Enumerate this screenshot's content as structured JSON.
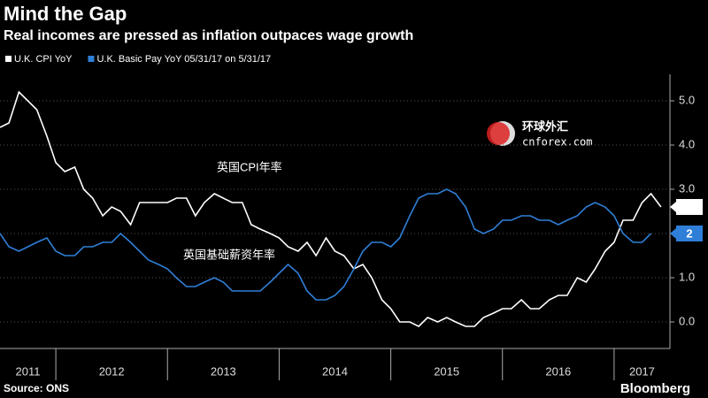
{
  "chart_data": {
    "type": "line",
    "title": "Mind the Gap",
    "subtitle": "Real incomes are pressed as inflation outpaces wage growth",
    "source": "Source: ONS",
    "brand": "Bloomberg",
    "annotations": [
      "英国CPI年率",
      "英国基础薪资年率"
    ],
    "watermark": [
      "环球外汇",
      "cnforex.com"
    ],
    "x": [
      2011.5,
      2011.58,
      2011.67,
      2011.75,
      2011.83,
      2011.92,
      2012.0,
      2012.08,
      2012.17,
      2012.25,
      2012.33,
      2012.42,
      2012.5,
      2012.58,
      2012.67,
      2012.75,
      2012.83,
      2012.92,
      2013.0,
      2013.08,
      2013.17,
      2013.25,
      2013.33,
      2013.42,
      2013.5,
      2013.58,
      2013.67,
      2013.75,
      2013.83,
      2013.92,
      2014.0,
      2014.08,
      2014.17,
      2014.25,
      2014.33,
      2014.42,
      2014.5,
      2014.58,
      2014.67,
      2014.75,
      2014.83,
      2014.92,
      2015.0,
      2015.08,
      2015.17,
      2015.25,
      2015.33,
      2015.42,
      2015.5,
      2015.58,
      2015.67,
      2015.75,
      2015.83,
      2015.92,
      2016.0,
      2016.08,
      2016.17,
      2016.25,
      2016.33,
      2016.42,
      2016.5,
      2016.58,
      2016.67,
      2016.75,
      2016.83,
      2016.92,
      2017.0,
      2017.08,
      2017.17,
      2017.25,
      2017.33,
      2017.42
    ],
    "series": [
      {
        "name": "U.K. CPI YoY",
        "color": "#ffffff",
        "values": [
          4.4,
          4.5,
          5.2,
          5.0,
          4.8,
          4.2,
          3.6,
          3.4,
          3.5,
          3.0,
          2.8,
          2.4,
          2.6,
          2.5,
          2.2,
          2.7,
          2.7,
          2.7,
          2.7,
          2.8,
          2.8,
          2.4,
          2.7,
          2.9,
          2.8,
          2.7,
          2.7,
          2.2,
          2.1,
          2.0,
          1.9,
          1.7,
          1.6,
          1.8,
          1.5,
          1.9,
          1.6,
          1.5,
          1.2,
          1.3,
          1.0,
          0.5,
          0.3,
          0.0,
          0.0,
          -0.1,
          0.1,
          0.0,
          0.1,
          0.0,
          -0.1,
          -0.1,
          0.1,
          0.2,
          0.3,
          0.3,
          0.5,
          0.3,
          0.3,
          0.5,
          0.6,
          0.6,
          1.0,
          0.9,
          1.2,
          1.6,
          1.8,
          2.3,
          2.3,
          2.7,
          2.9,
          2.6
        ]
      },
      {
        "name": "U.K. Basic Pay YoY 05/31/17 on 5/31/17",
        "color": "#2f7fd8",
        "values": [
          2.0,
          1.7,
          1.6,
          1.7,
          1.8,
          1.9,
          1.6,
          1.5,
          1.5,
          1.7,
          1.7,
          1.8,
          1.8,
          2.0,
          1.8,
          1.6,
          1.4,
          1.3,
          1.2,
          1.0,
          0.8,
          0.8,
          0.9,
          1.0,
          0.9,
          0.7,
          0.7,
          0.7,
          0.7,
          0.9,
          1.1,
          1.3,
          1.1,
          0.7,
          0.5,
          0.5,
          0.6,
          0.8,
          1.2,
          1.6,
          1.8,
          1.8,
          1.7,
          1.9,
          2.4,
          2.8,
          2.9,
          2.9,
          3.0,
          2.9,
          2.6,
          2.1,
          2.0,
          2.1,
          2.3,
          2.3,
          2.4,
          2.4,
          2.3,
          2.3,
          2.2,
          2.3,
          2.4,
          2.6,
          2.7,
          2.6,
          2.4,
          2.0,
          1.8,
          1.8,
          2.0,
          null
        ]
      }
    ],
    "xlim": [
      2011.5,
      2017.5
    ],
    "xticks": [
      {
        "value": 2011.75,
        "label": "2011"
      },
      {
        "value": 2012.5,
        "label": "2012"
      },
      {
        "value": 2013.5,
        "label": "2013"
      },
      {
        "value": 2014.5,
        "label": "2014"
      },
      {
        "value": 2015.5,
        "label": "2015"
      },
      {
        "value": 2016.5,
        "label": "2016"
      },
      {
        "value": 2017.25,
        "label": "2017"
      }
    ],
    "xseparators": [
      2012,
      2013,
      2014,
      2015,
      2016,
      2017
    ],
    "ylim": [
      -0.6,
      5.6
    ],
    "yticks": [
      {
        "value": 0,
        "label": "0.0"
      },
      {
        "value": 1,
        "label": "1.0"
      },
      {
        "value": 2,
        "label": "2.0"
      },
      {
        "value": 3,
        "label": "3.0"
      },
      {
        "value": 4,
        "label": "4.0"
      },
      {
        "value": 5,
        "label": "5.0"
      }
    ],
    "grid": true
  }
}
